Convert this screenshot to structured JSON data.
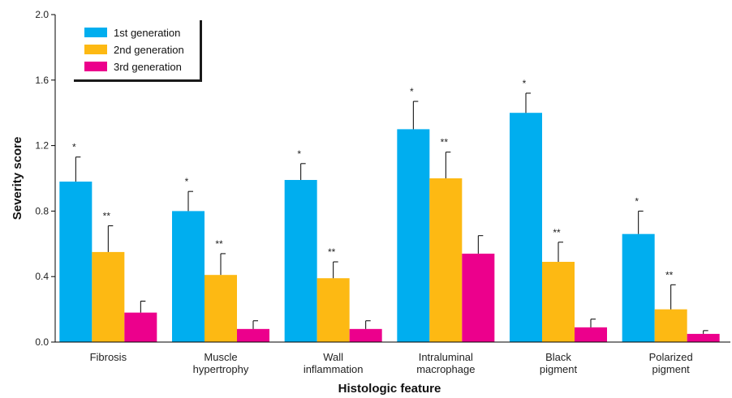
{
  "chart_data": {
    "type": "bar",
    "xlabel": "Histologic feature",
    "ylabel": "Severity score",
    "ylim": [
      0,
      2.0
    ],
    "yticks": [
      "0.0",
      "0.4",
      "0.8",
      "1.2",
      "1.6",
      "2.0"
    ],
    "ytick_values": [
      0,
      0.4,
      0.8,
      1.2,
      1.6,
      2.0
    ],
    "categories": [
      [
        "Fibrosis"
      ],
      [
        "Muscle",
        "hypertrophy"
      ],
      [
        "Wall",
        "inflammation"
      ],
      [
        "Intraluminal",
        "macrophage"
      ],
      [
        "Black",
        "pigment"
      ],
      [
        "Polarized",
        "pigment"
      ]
    ],
    "legend_position": "top-left",
    "grid": false,
    "series": [
      {
        "name": "1st generation",
        "color": "#00aeef",
        "values": [
          0.98,
          0.8,
          0.99,
          1.3,
          1.4,
          0.66
        ],
        "errors": [
          0.15,
          0.12,
          0.1,
          0.17,
          0.12,
          0.14
        ],
        "significance": [
          "*",
          "*",
          "*",
          "*",
          "*",
          "*"
        ]
      },
      {
        "name": "2nd generation",
        "color": "#fdb913",
        "values": [
          0.55,
          0.41,
          0.39,
          1.0,
          0.49,
          0.2
        ],
        "errors": [
          0.16,
          0.13,
          0.1,
          0.16,
          0.12,
          0.15
        ],
        "significance": [
          "**",
          "**",
          "**",
          "**",
          "**",
          "**"
        ]
      },
      {
        "name": "3rd generation",
        "color": "#ec008c",
        "values": [
          0.18,
          0.08,
          0.08,
          0.54,
          0.09,
          0.05
        ],
        "errors": [
          0.07,
          0.05,
          0.05,
          0.11,
          0.05,
          0.02
        ],
        "significance": [
          "",
          "",
          "",
          "",
          "",
          ""
        ]
      }
    ]
  }
}
